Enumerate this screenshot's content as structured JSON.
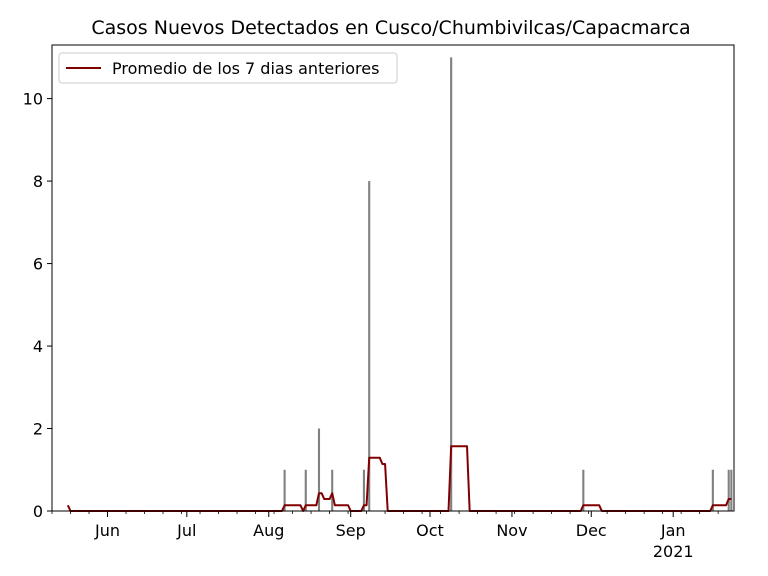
{
  "chart_data": {
    "type": "bar",
    "title": "Casos Nuevos Detectados en Cusco/Chumbivilcas/Capacmarca",
    "xlabel": "",
    "ylabel": "",
    "x_range": [
      "2020-05-11",
      "2021-01-24"
    ],
    "ylim": [
      0,
      11.3
    ],
    "yticks": [
      0,
      2,
      4,
      6,
      8,
      10
    ],
    "xticks": [
      {
        "date": "2020-06-01",
        "label": "Jun",
        "sublabel": ""
      },
      {
        "date": "2020-07-01",
        "label": "Jul",
        "sublabel": ""
      },
      {
        "date": "2020-08-01",
        "label": "Aug",
        "sublabel": ""
      },
      {
        "date": "2020-09-01",
        "label": "Sep",
        "sublabel": ""
      },
      {
        "date": "2020-10-01",
        "label": "Oct",
        "sublabel": ""
      },
      {
        "date": "2020-11-01",
        "label": "Nov",
        "sublabel": ""
      },
      {
        "date": "2020-12-01",
        "label": "Dec",
        "sublabel": ""
      },
      {
        "date": "2021-01-01",
        "label": "Jan",
        "sublabel": "2021"
      }
    ],
    "legend": {
      "placement": "top-left",
      "entries": [
        "Promedio de los 7 dias anteriores"
      ]
    },
    "grid": false,
    "series": [
      {
        "kind": "bars",
        "color": "#808080",
        "points": [
          {
            "date": "2020-08-07",
            "value": 1
          },
          {
            "date": "2020-08-15",
            "value": 1
          },
          {
            "date": "2020-08-20",
            "value": 2
          },
          {
            "date": "2020-08-25",
            "value": 1
          },
          {
            "date": "2020-09-06",
            "value": 1
          },
          {
            "date": "2020-09-08",
            "value": 8
          },
          {
            "date": "2020-10-09",
            "value": 11
          },
          {
            "date": "2020-11-28",
            "value": 1
          },
          {
            "date": "2021-01-16",
            "value": 1
          },
          {
            "date": "2021-01-22",
            "value": 1
          },
          {
            "date": "2021-01-23",
            "value": 1
          }
        ]
      },
      {
        "kind": "line",
        "name": "Promedio de los 7 dias anteriores",
        "color": "#800000",
        "points": [
          {
            "date": "2020-05-17",
            "value": 0.14
          },
          {
            "date": "2020-05-18",
            "value": 0
          },
          {
            "date": "2020-08-06",
            "value": 0
          },
          {
            "date": "2020-08-07",
            "value": 0.14
          },
          {
            "date": "2020-08-13",
            "value": 0.14
          },
          {
            "date": "2020-08-14",
            "value": 0
          },
          {
            "date": "2020-08-15",
            "value": 0.14
          },
          {
            "date": "2020-08-19",
            "value": 0.14
          },
          {
            "date": "2020-08-20",
            "value": 0.43
          },
          {
            "date": "2020-08-21",
            "value": 0.43
          },
          {
            "date": "2020-08-22",
            "value": 0.29
          },
          {
            "date": "2020-08-24",
            "value": 0.29
          },
          {
            "date": "2020-08-25",
            "value": 0.43
          },
          {
            "date": "2020-08-26",
            "value": 0.14
          },
          {
            "date": "2020-08-31",
            "value": 0.14
          },
          {
            "date": "2020-09-01",
            "value": 0
          },
          {
            "date": "2020-09-05",
            "value": 0
          },
          {
            "date": "2020-09-06",
            "value": 0.14
          },
          {
            "date": "2020-09-07",
            "value": 0.14
          },
          {
            "date": "2020-09-08",
            "value": 1.29
          },
          {
            "date": "2020-09-12",
            "value": 1.29
          },
          {
            "date": "2020-09-13",
            "value": 1.14
          },
          {
            "date": "2020-09-14",
            "value": 1.14
          },
          {
            "date": "2020-09-15",
            "value": 0
          },
          {
            "date": "2020-10-08",
            "value": 0
          },
          {
            "date": "2020-10-09",
            "value": 1.57
          },
          {
            "date": "2020-10-15",
            "value": 1.57
          },
          {
            "date": "2020-10-16",
            "value": 0
          },
          {
            "date": "2020-11-27",
            "value": 0
          },
          {
            "date": "2020-11-28",
            "value": 0.14
          },
          {
            "date": "2020-12-04",
            "value": 0.14
          },
          {
            "date": "2020-12-05",
            "value": 0
          },
          {
            "date": "2021-01-15",
            "value": 0
          },
          {
            "date": "2021-01-16",
            "value": 0.14
          },
          {
            "date": "2021-01-21",
            "value": 0.14
          },
          {
            "date": "2021-01-22",
            "value": 0.29
          },
          {
            "date": "2021-01-23",
            "value": 0.29
          }
        ]
      }
    ]
  }
}
